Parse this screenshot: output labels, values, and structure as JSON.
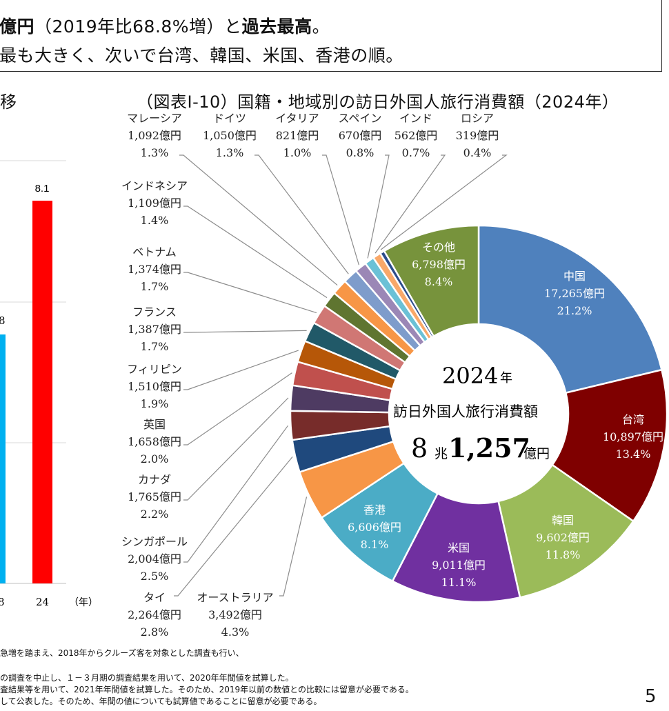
{
  "summary": {
    "line1_part1": "億円",
    "line1_part2": "（2019年比68.8%増）と",
    "line1_part3": "過去最高",
    "line1_part4": "。",
    "line2": "最も大きく、次いで台湾、韓国、米国、香港の順。"
  },
  "left_chart": {
    "title_fragment": "移",
    "bar_value_label": "8.1",
    "partial_value_label": "8",
    "x_labels": [
      "8",
      "24"
    ],
    "x_unit": "（年）",
    "colors": {
      "red": "#FF0000",
      "cyan": "#00B0F0"
    }
  },
  "right_chart_title": "（図表Ⅰ-10）国籍・地域別の訪日外国人旅行消費額（2024年）",
  "center": {
    "year": "2024",
    "year_unit": "年",
    "caption": "訪日外国人旅行消費額",
    "amount_cho": "8",
    "cho_unit": "兆",
    "amount_oku": "1,257",
    "oku_unit": "億円"
  },
  "footnotes": [
    "急増を踏まえ、2018年からクルーズ客を対象とした調査も行い、",
    "の調査を中止し、１－３月期の調査結果を用いて、2020年年間値を試算した。",
    "査結果等を用いて、2021年年間値を試算した。そのため、2019年以前の数値との比較には留意が必要である。",
    "して公表した。そのため、年間の値についても試算値であることに留意が必要である。"
  ],
  "page_number": "5",
  "chart_data": {
    "type": "pie",
    "title": "（図表Ⅰ-10）国籍・地域別の訪日外国人旅行消費額（2024年）",
    "unit": "億円",
    "total": "8兆1,257億円",
    "slices": [
      {
        "name": "中国",
        "amount": "17,265億円",
        "value": 17265,
        "share": "21.2%",
        "color": "#4F81BD"
      },
      {
        "name": "台湾",
        "amount": "10,897億円",
        "value": 10897,
        "share": "13.4%",
        "color": "#7F0000"
      },
      {
        "name": "韓国",
        "amount": "9,602億円",
        "value": 9602,
        "share": "11.8%",
        "color": "#9BBB59"
      },
      {
        "name": "米国",
        "amount": "9,011億円",
        "value": 9011,
        "share": "11.1%",
        "color": "#7030A0"
      },
      {
        "name": "香港",
        "amount": "6,606億円",
        "value": 6606,
        "share": "8.1%",
        "color": "#4BACC6"
      },
      {
        "name": "オーストラリア",
        "amount": "3,492億円",
        "value": 3492,
        "share": "4.3%",
        "color": "#F79646"
      },
      {
        "name": "タイ",
        "amount": "2,264億円",
        "value": 2264,
        "share": "2.8%",
        "color": "#1F497D"
      },
      {
        "name": "シンガポール",
        "amount": "2,004億円",
        "value": 2004,
        "share": "2.5%",
        "color": "#772C2A"
      },
      {
        "name": "カナダ",
        "amount": "1,765億円",
        "value": 1765,
        "share": "2.2%",
        "color": "#4E3B62"
      },
      {
        "name": "英国",
        "amount": "1,658億円",
        "value": 1658,
        "share": "2.0%",
        "color": "#C0504D"
      },
      {
        "name": "フィリピン",
        "amount": "1,510億円",
        "value": 1510,
        "share": "1.9%",
        "color": "#B65708"
      },
      {
        "name": "フランス",
        "amount": "1,387億円",
        "value": 1387,
        "share": "1.7%",
        "color": "#215968"
      },
      {
        "name": "ベトナム",
        "amount": "1,374億円",
        "value": 1374,
        "share": "1.7%",
        "color": "#D07774"
      },
      {
        "name": "インドネシア",
        "amount": "1,109億円",
        "value": 1109,
        "share": "1.4%",
        "color": "#5F7530"
      },
      {
        "name": "マレーシア",
        "amount": "1,092億円",
        "value": 1092,
        "share": "1.3%",
        "color": "#F79646"
      },
      {
        "name": "ドイツ",
        "amount": "1,050億円",
        "value": 1050,
        "share": "1.3%",
        "color": "#7E9CCB"
      },
      {
        "name": "イタリア",
        "amount": "821億円",
        "value": 821,
        "share": "1.0%",
        "color": "#9B87B6"
      },
      {
        "name": "スペイン",
        "amount": "670億円",
        "value": 670,
        "share": "0.8%",
        "color": "#6BC1D6"
      },
      {
        "name": "インド",
        "amount": "562億円",
        "value": 562,
        "share": "0.7%",
        "color": "#F9A869"
      },
      {
        "name": "ロシア",
        "amount": "319億円",
        "value": 319,
        "share": "0.4%",
        "color": "#2B4C8C"
      },
      {
        "name": "その他",
        "amount": "6,798億円",
        "value": 6798,
        "share": "8.4%",
        "color": "#77933C"
      }
    ]
  }
}
